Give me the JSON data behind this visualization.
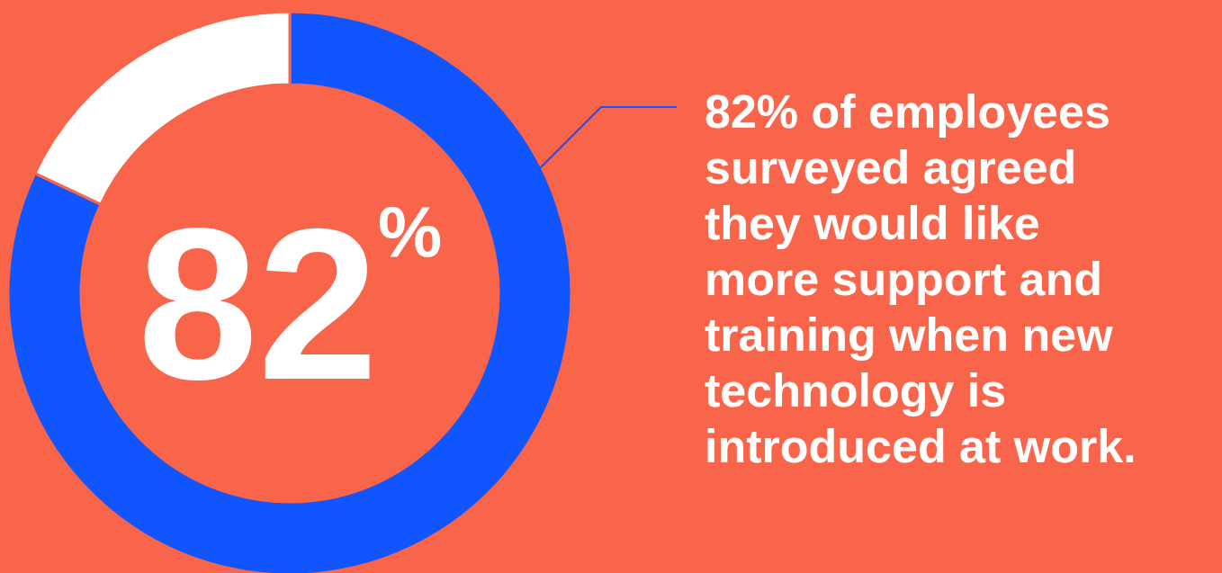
{
  "chart_data": {
    "type": "donut",
    "categories": [
      null,
      null
    ],
    "values": [
      82,
      18
    ],
    "colors": [
      "#1155ff",
      "#ffffff"
    ],
    "annotations": [
      "82$^{%}$",
      "82% of employees surveyed agreed they would like more support and training when new technology is introduced at work."
    ]
  }
}
